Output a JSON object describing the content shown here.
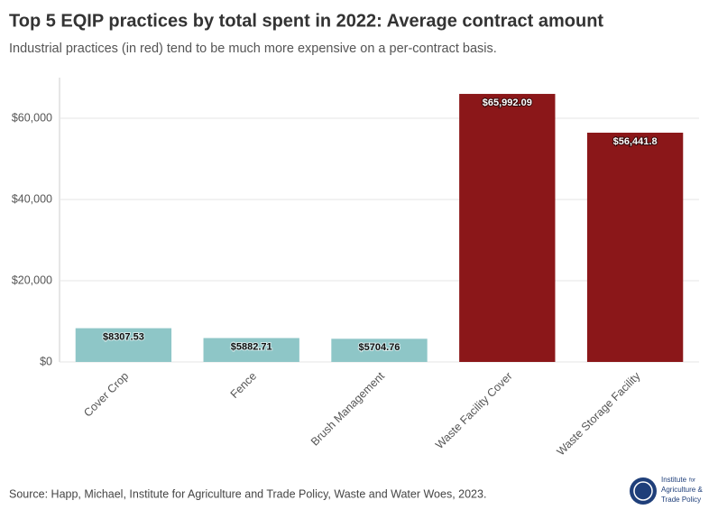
{
  "chart_data": {
    "type": "bar",
    "title": "Top 5 EQIP practices by total spent in 2022: Average contract amount",
    "subtitle": "Industrial practices (in red) tend to be much more expensive on a per-contract basis.",
    "categories": [
      "Cover Crop",
      "Fence",
      "Brush Management",
      "Waste Facility Cover",
      "Waste Storage Facility"
    ],
    "values": [
      8307.53,
      5882.71,
      5704.76,
      65992.09,
      56441.8
    ],
    "value_labels": [
      "$8307.53",
      "$5882.71",
      "$5704.76",
      "$65,992.09",
      "$56,441.8"
    ],
    "colors": [
      "#8ec6c7",
      "#8ec6c7",
      "#8ec6c7",
      "#8b1719",
      "#8b1719"
    ],
    "ylim": [
      0,
      70000
    ],
    "yticks": [
      {
        "value": 0,
        "label": "$0"
      },
      {
        "value": 20000,
        "label": "$20,000"
      },
      {
        "value": 40000,
        "label": "$40,000"
      },
      {
        "value": 60000,
        "label": "$60,000"
      }
    ],
    "grid": true,
    "source": "Source: Happ, Michael, Institute for Agriculture and Trade Policy, Waste and Water Woes, 2023."
  },
  "logo": {
    "lines": [
      "Institute",
      "for",
      "Agriculture &",
      "Trade Policy"
    ]
  }
}
